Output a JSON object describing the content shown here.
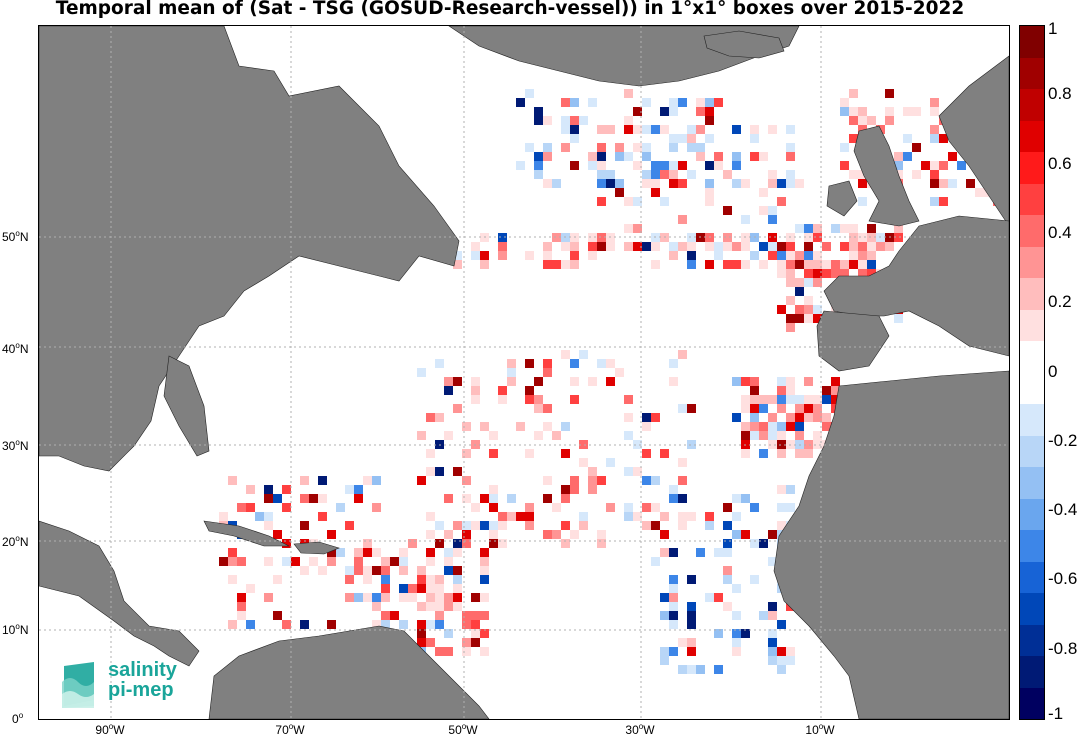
{
  "title": "Temporal mean of (Sat - TSG (GOSUD-Research-vessel)) in 1°x1° boxes over 2015-2022",
  "map": {
    "lat_labels": [
      {
        "deg": "50",
        "hemi": "N"
      },
      {
        "deg": "40",
        "hemi": "N"
      },
      {
        "deg": "30",
        "hemi": "N"
      },
      {
        "deg": "20",
        "hemi": "N"
      },
      {
        "deg": "10",
        "hemi": "N"
      },
      {
        "deg": "0",
        "hemi": ""
      }
    ],
    "lon_labels": [
      {
        "deg": "90",
        "hemi": "W"
      },
      {
        "deg": "70",
        "hemi": "W"
      },
      {
        "deg": "50",
        "hemi": "W"
      },
      {
        "deg": "30",
        "hemi": "W"
      },
      {
        "deg": "10",
        "hemi": "W"
      }
    ],
    "lon_range": [
      -97,
      10
    ],
    "lat_range": [
      0,
      63
    ],
    "land_color": "#808080",
    "ocean_color": "#ffffff",
    "grid": "dotted"
  },
  "colorbar": {
    "ticks": [
      "1",
      "0.8",
      "0.6",
      "0.4",
      "0.2",
      "0",
      "-0.2",
      "-0.4",
      "-0.6",
      "-0.8",
      "-1"
    ],
    "range": [
      -1,
      1
    ],
    "colors": [
      "#800000",
      "#a00000",
      "#c00000",
      "#e00000",
      "#ff1a1a",
      "#ff4040",
      "#ff6b6b",
      "#ff9494",
      "#ffbdbd",
      "#ffe0e0",
      "#ffffff",
      "#ffffff",
      "#d6e8fb",
      "#b8d6f7",
      "#94c0f3",
      "#6aa6ee",
      "#3d86e8",
      "#1763d6",
      "#0047b8",
      "#002f96",
      "#001a75",
      "#000060"
    ]
  },
  "logo": {
    "line1": "salinity",
    "line2": "pi-mep"
  }
}
